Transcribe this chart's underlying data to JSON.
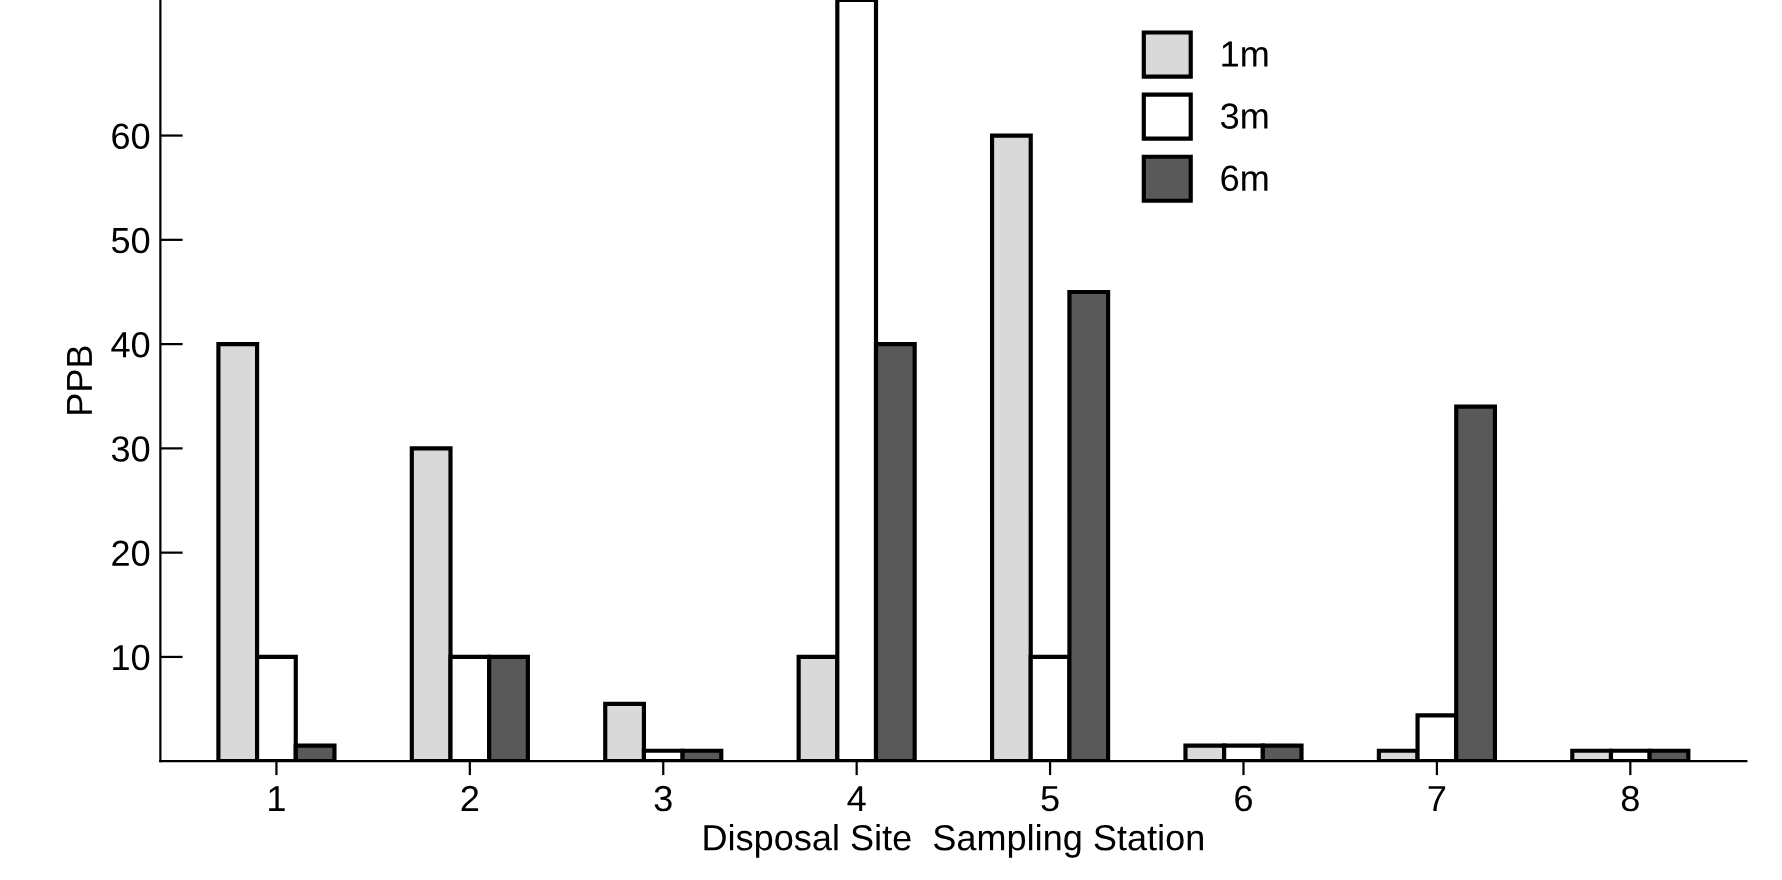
{
  "chart_data": {
    "type": "bar",
    "xlabel": "Disposal Site  Sampling Station",
    "ylabel": "PPB",
    "categories": [
      "1",
      "2",
      "3",
      "4",
      "5",
      "6",
      "7",
      "8"
    ],
    "series": [
      {
        "name": "1m",
        "color": "#d9d9d9",
        "values": [
          40,
          30,
          5.5,
          10,
          60,
          1.5,
          1,
          1
        ]
      },
      {
        "name": "3m",
        "color": "#ffffff",
        "values": [
          10,
          10,
          1,
          73,
          10,
          1.5,
          4.4,
          1
        ]
      },
      {
        "name": "6m",
        "color": "#595959",
        "values": [
          1.5,
          10,
          1,
          40,
          45,
          1.5,
          34,
          1
        ]
      }
    ],
    "ylim": [
      0,
      73
    ],
    "yticks": [
      10,
      20,
      30,
      40,
      50,
      60
    ],
    "grid": false,
    "legend": "top right"
  }
}
